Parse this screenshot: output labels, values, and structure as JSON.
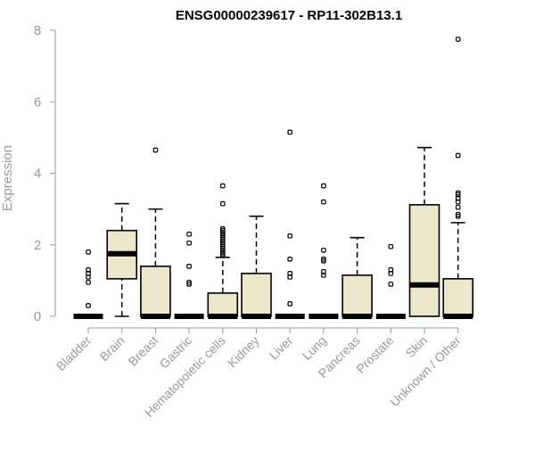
{
  "chart_data": {
    "type": "box",
    "title": "ENSG00000239617 - RP11-302B13.1",
    "ylabel": "Expression",
    "ylim": [
      0,
      8
    ],
    "yticks": [
      0,
      2,
      4,
      6,
      8
    ],
    "box_fill": "#ece6cb",
    "categories": [
      "Bladder",
      "Brain",
      "Breast",
      "Gastric",
      "Hematopoietic cells",
      "Kidney",
      "Liver",
      "Lung",
      "Pancreas",
      "Prostate",
      "Skin",
      "Unknown / Other"
    ],
    "boxes": [
      {
        "name": "Bladder",
        "min": 0,
        "q1": 0,
        "median": 0,
        "q3": 0,
        "max": 0,
        "outliers": [
          0.3,
          0.95,
          1.1,
          1.2,
          1.3,
          1.8
        ]
      },
      {
        "name": "Brain",
        "min": 0,
        "q1": 1.05,
        "median": 1.75,
        "q3": 2.4,
        "max": 3.15,
        "outliers": []
      },
      {
        "name": "Breast",
        "min": 0,
        "q1": 0,
        "median": 0,
        "q3": 1.4,
        "max": 3.0,
        "outliers": [
          4.65
        ]
      },
      {
        "name": "Gastric",
        "min": 0,
        "q1": 0,
        "median": 0,
        "q3": 0,
        "max": 0,
        "outliers": [
          0.9,
          0.95,
          1.4,
          2.05,
          2.3
        ]
      },
      {
        "name": "Hematopoietic cells",
        "min": 0,
        "q1": 0,
        "median": 0,
        "q3": 0.65,
        "max": 1.65,
        "outliers": [
          1.7,
          1.75,
          1.8,
          1.85,
          1.9,
          1.95,
          2.0,
          2.05,
          2.1,
          2.15,
          2.2,
          2.25,
          2.3,
          2.35,
          2.4,
          2.45,
          3.15,
          3.65
        ]
      },
      {
        "name": "Kidney",
        "min": 0,
        "q1": 0,
        "median": 0,
        "q3": 1.2,
        "max": 2.8,
        "outliers": []
      },
      {
        "name": "Liver",
        "min": 0,
        "q1": 0,
        "median": 0,
        "q3": 0,
        "max": 0,
        "outliers": [
          0.35,
          1.1,
          1.2,
          1.6,
          2.25,
          5.15
        ]
      },
      {
        "name": "Lung",
        "min": 0,
        "q1": 0,
        "median": 0,
        "q3": 0,
        "max": 0,
        "outliers": [
          1.15,
          1.25,
          1.55,
          1.6,
          1.85,
          3.2,
          3.65
        ]
      },
      {
        "name": "Pancreas",
        "min": 0,
        "q1": 0,
        "median": 0,
        "q3": 1.15,
        "max": 2.2,
        "outliers": []
      },
      {
        "name": "Prostate",
        "min": 0,
        "q1": 0,
        "median": 0,
        "q3": 0,
        "max": 0,
        "outliers": [
          0.9,
          1.2,
          1.3,
          1.95
        ]
      },
      {
        "name": "Skin",
        "min": 0,
        "q1": 0,
        "median": 0.88,
        "q3": 3.12,
        "max": 4.72,
        "outliers": []
      },
      {
        "name": "Unknown / Other",
        "min": 0,
        "q1": 0,
        "median": 0,
        "q3": 1.05,
        "max": 2.62,
        "outliers": [
          2.8,
          2.85,
          3.05,
          3.2,
          3.3,
          3.4,
          3.45,
          4.5,
          7.75
        ]
      }
    ]
  }
}
